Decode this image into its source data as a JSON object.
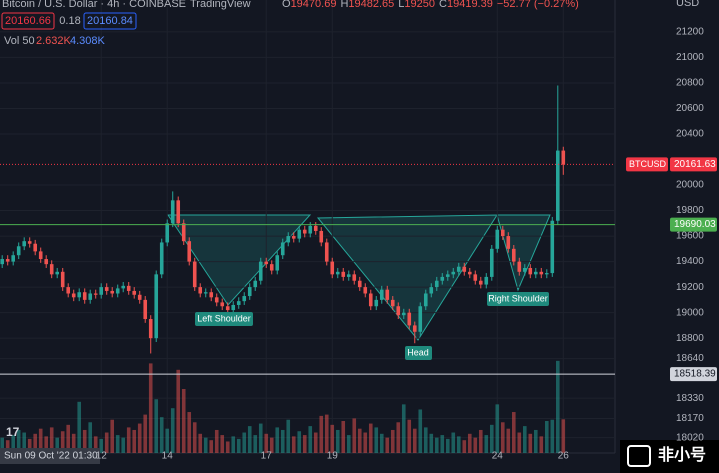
{
  "chart_data": {
    "type": "candlestick",
    "title": "Bitcoin / U.S. Dollar · 4h · COINBASE",
    "source": "TradingView",
    "ohlc_legend": [
      {
        "label": "O",
        "value": 19470.69
      },
      {
        "label": "H",
        "value": 19482.65
      },
      {
        "label": "L",
        "value": 19250.0
      },
      {
        "label": "C",
        "value": 19419.39
      }
    ],
    "change": "−52.77 (−0.27%)",
    "bid": 20160.66,
    "spread": 0.18,
    "ask": 20160.84,
    "volume_indicator": {
      "name": "Vol 50",
      "last": "2.632K",
      "ma": "4.308K"
    },
    "y_axis_unit": "USD",
    "ylim": [
      17900,
      21450
    ],
    "yticks": [
      21200,
      21000,
      20800,
      20600,
      20400,
      20000,
      19800,
      19600,
      19400,
      19200,
      19000,
      18800,
      18640,
      18330,
      18170,
      18020
    ],
    "xlim": [
      -0.4,
      111.4
    ],
    "xticks": [
      {
        "value": 18,
        "label": "12"
      },
      {
        "value": 30,
        "label": "14"
      },
      {
        "value": 48,
        "label": "17"
      },
      {
        "value": 60,
        "label": "19"
      },
      {
        "value": 90,
        "label": "24"
      },
      {
        "value": 102,
        "label": "26"
      }
    ],
    "crosshair_label": "Sun 09 Oct '22  01:30",
    "up_color": "#26a69a",
    "down_color": "#ef5350",
    "open": [
      19380,
      19420,
      19400,
      19450,
      19520,
      19560,
      19540,
      19480,
      19420,
      19380,
      19300,
      19320,
      19200,
      19150,
      19120,
      19160,
      19100,
      19150,
      19140,
      19200,
      19170,
      19150,
      19190,
      19210,
      19170,
      19140,
      19100,
      18950,
      18800,
      19300,
      19550,
      19700,
      19880,
      19700,
      19560,
      19400,
      19200,
      19150,
      19160,
      19120,
      19080,
      19050,
      19020,
      19060,
      19090,
      19130,
      19200,
      19250,
      19400,
      19380,
      19330,
      19450,
      19550,
      19600,
      19580,
      19650,
      19620,
      19680,
      19640,
      19550,
      19400,
      19300,
      19320,
      19280,
      19300,
      19250,
      19200,
      19150,
      19050,
      19100,
      19180,
      19100,
      19050,
      18980,
      19000,
      18900,
      18850,
      19050,
      19150,
      19200,
      19250,
      19280,
      19300,
      19320,
      19360,
      19320,
      19300,
      19250,
      19220,
      19280,
      19500,
      19650,
      19600,
      19500,
      19400,
      19320,
      19350,
      19300,
      19320,
      19300,
      19310,
      19720,
      20270
    ],
    "high": [
      19450,
      19450,
      19480,
      19550,
      19590,
      19590,
      19570,
      19510,
      19450,
      19410,
      19350,
      19350,
      19230,
      19180,
      19190,
      19190,
      19180,
      19180,
      19230,
      19230,
      19200,
      19220,
      19240,
      19240,
      19200,
      19170,
      19130,
      18980,
      19330,
      19580,
      19730,
      19950,
      19910,
      19730,
      19590,
      19430,
      19230,
      19190,
      19190,
      19150,
      19110,
      19080,
      19090,
      19120,
      19160,
      19230,
      19280,
      19430,
      19430,
      19410,
      19480,
      19580,
      19630,
      19630,
      19680,
      19680,
      19710,
      19710,
      19670,
      19580,
      19430,
      19350,
      19350,
      19330,
      19330,
      19280,
      19230,
      19180,
      19130,
      19210,
      19210,
      19130,
      19080,
      19030,
      19030,
      18930,
      19080,
      19180,
      19230,
      19280,
      19310,
      19330,
      19350,
      19390,
      19390,
      19350,
      19330,
      19280,
      19310,
      19530,
      19680,
      19680,
      19630,
      19530,
      19430,
      19380,
      19380,
      19350,
      19350,
      19340,
      19750,
      20780,
      20300
    ],
    "low": [
      19350,
      19370,
      19370,
      19420,
      19490,
      19510,
      19450,
      19390,
      19350,
      19270,
      19270,
      19170,
      19120,
      19090,
      19090,
      19070,
      19070,
      19110,
      19110,
      19140,
      19120,
      19120,
      19160,
      19140,
      19110,
      19070,
      18920,
      18680,
      18770,
      19270,
      19520,
      19670,
      19670,
      19530,
      19370,
      19170,
      19120,
      19120,
      19090,
      19050,
      19020,
      18990,
      18990,
      19030,
      19060,
      19100,
      19170,
      19220,
      19350,
      19300,
      19300,
      19420,
      19520,
      19550,
      19550,
      19590,
      19590,
      19610,
      19520,
      19370,
      19270,
      19270,
      19250,
      19250,
      19220,
      19170,
      19120,
      19020,
      19020,
      19070,
      19070,
      19020,
      18950,
      18950,
      18870,
      18760,
      18820,
      19020,
      19120,
      19170,
      19220,
      19250,
      19270,
      19290,
      19290,
      19270,
      19220,
      19190,
      19190,
      19250,
      19470,
      19570,
      19470,
      19370,
      19290,
      19290,
      19270,
      19270,
      19270,
      19270,
      19280,
      19690,
      20080
    ],
    "close": [
      19420,
      19400,
      19450,
      19520,
      19560,
      19540,
      19480,
      19420,
      19380,
      19300,
      19320,
      19200,
      19150,
      19120,
      19160,
      19100,
      19150,
      19140,
      19200,
      19170,
      19150,
      19190,
      19210,
      19170,
      19140,
      19100,
      18950,
      18800,
      19300,
      19550,
      19700,
      19880,
      19700,
      19560,
      19400,
      19200,
      19150,
      19160,
      19120,
      19080,
      19050,
      19020,
      19060,
      19090,
      19130,
      19200,
      19250,
      19400,
      19380,
      19330,
      19450,
      19550,
      19600,
      19580,
      19650,
      19620,
      19680,
      19640,
      19550,
      19400,
      19300,
      19320,
      19280,
      19300,
      19250,
      19200,
      19150,
      19050,
      19100,
      19180,
      19100,
      19050,
      18980,
      19000,
      18900,
      18850,
      19050,
      19150,
      19200,
      19250,
      19280,
      19300,
      19320,
      19360,
      19320,
      19300,
      19250,
      19220,
      19280,
      19500,
      19650,
      19600,
      19500,
      19400,
      19320,
      19350,
      19300,
      19320,
      19300,
      19310,
      19720,
      20270,
      20160
    ],
    "volume": [
      1.2,
      1.0,
      1.4,
      1.8,
      1.6,
      1.1,
      1.5,
      1.9,
      1.3,
      2.0,
      1.2,
      1.7,
      2.2,
      1.5,
      4.0,
      1.8,
      2.4,
      1.3,
      1.1,
      1.6,
      2.6,
      1.4,
      1.2,
      2.0,
      1.8,
      2.3,
      3.0,
      7.0,
      4.2,
      2.8,
      1.9,
      3.5,
      6.5,
      5.0,
      3.2,
      2.4,
      1.5,
      1.2,
      1.0,
      1.8,
      1.4,
      0.9,
      1.3,
      1.1,
      1.6,
      2.1,
      1.4,
      2.3,
      1.5,
      1.2,
      2.0,
      1.8,
      2.6,
      1.3,
      1.7,
      1.4,
      2.1,
      1.6,
      2.9,
      3.0,
      2.2,
      1.8,
      2.5,
      1.4,
      2.7,
      1.9,
      1.6,
      2.3,
      2.0,
      1.5,
      1.2,
      1.8,
      2.4,
      3.8,
      2.6,
      1.9,
      3.4,
      2.0,
      1.5,
      1.2,
      1.4,
      1.1,
      1.6,
      1.3,
      1.0,
      1.5,
      1.2,
      1.8,
      1.4,
      2.2,
      3.8,
      2.4,
      1.9,
      3.2,
      1.6,
      2.1,
      1.5,
      1.8,
      1.3,
      2.5,
      2.6,
      7.2,
      2.632
    ],
    "volume_ylim": [
      0,
      7.5
    ],
    "price_lines": [
      {
        "label": "BTCUSD",
        "value": 20161.63,
        "color": "#f23645"
      },
      {
        "value": 19690.03,
        "color": "#4caf50"
      },
      {
        "value": 18518.39,
        "color": "#d1d4dc"
      }
    ],
    "annotations": [
      "Left Shoulder",
      "Head",
      "Right Shoulder"
    ],
    "watermark": "非小号"
  }
}
